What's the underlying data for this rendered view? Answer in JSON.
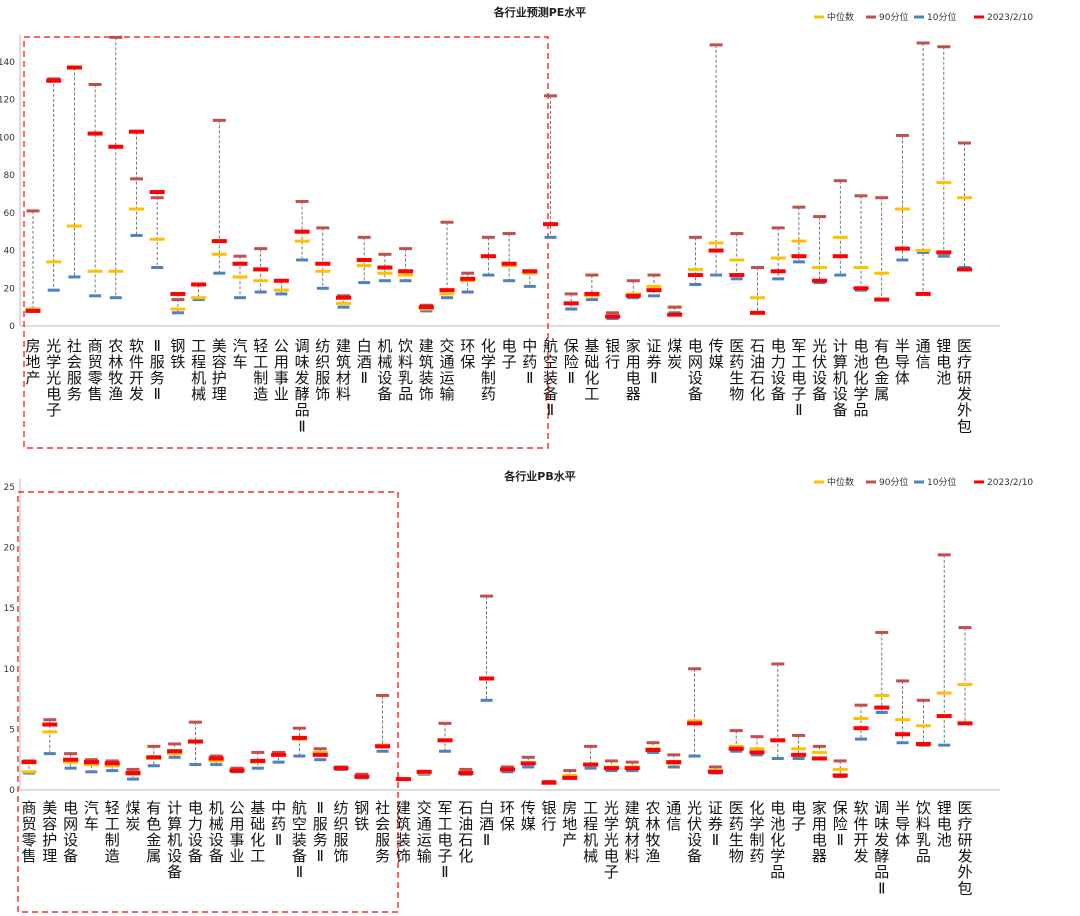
{
  "legend": [
    {
      "name": "中位数",
      "color": "#FFC000"
    },
    {
      "name": "90分位",
      "color": "#C0504D"
    },
    {
      "name": "10分位",
      "color": "#4F81BD"
    },
    {
      "name": "2023/2/10",
      "color": "#FF0000"
    }
  ],
  "colors": {
    "median": "#FFC000",
    "p90": "#C0504D",
    "p10": "#4F81BD",
    "current": "#FF0000",
    "highlight_box": "#FF0000",
    "whisker": "#555555"
  },
  "chart_data": [
    {
      "type": "range-marker",
      "title": "各行业预测PE水平",
      "ylim": [
        0,
        150
      ],
      "yticks": [
        0,
        20,
        40,
        60,
        80,
        100,
        120,
        140
      ],
      "categories": [
        "房地产",
        "光学光电子",
        "社会服务",
        "商贸零售",
        "农林牧渔",
        "软件开发",
        "Ⅱ服务Ⅱ",
        "钢铁",
        "工程机械",
        "美容护理",
        "汽车",
        "轻工制造",
        "公用事业",
        "调味发酵品Ⅱ",
        "纺织服饰",
        "建筑材料",
        "白酒Ⅱ",
        "机械设备",
        "饮料乳品",
        "建筑装饰",
        "交通运输",
        "环保",
        "化学制药",
        "电子",
        "中药Ⅱ",
        "航空装备Ⅱ",
        "保险Ⅱ",
        "基础化工",
        "银行",
        "家用电器",
        "证券Ⅱ",
        "煤炭",
        "电网设备",
        "传媒",
        "医药生物",
        "石油石化",
        "电力设备",
        "军工电子Ⅱ",
        "光伏设备",
        "计算机设备",
        "电池化学品",
        "有色金属",
        "半导体",
        "通信",
        "锂电池",
        "医疗研发外包"
      ],
      "series": [
        {
          "name": "中位数",
          "values": [
            9,
            34,
            53,
            29,
            29,
            62,
            46,
            9,
            15,
            38,
            26,
            24,
            19,
            45,
            29,
            12,
            32,
            28,
            27,
            9,
            17,
            24,
            37,
            32,
            28,
            54,
            12,
            16,
            5,
            17,
            21,
            10,
            30,
            44,
            35,
            15,
            36,
            45,
            31,
            47,
            31,
            28,
            62,
            40,
            76,
            68
          ]
        },
        {
          "name": "90分位",
          "values": [
            61,
            131,
            137,
            128,
            153,
            78,
            68,
            14,
            22,
            109,
            37,
            41,
            24,
            66,
            52,
            16,
            47,
            38,
            41,
            11,
            55,
            28,
            47,
            49,
            29,
            122,
            17,
            27,
            7,
            24,
            27,
            10,
            47,
            149,
            49,
            31,
            52,
            63,
            58,
            77,
            69,
            68,
            101,
            150,
            148,
            97
          ]
        },
        {
          "name": "10分位",
          "values": [
            8,
            19,
            26,
            16,
            15,
            48,
            31,
            7,
            14,
            28,
            15,
            18,
            17,
            35,
            20,
            10,
            23,
            24,
            24,
            8,
            15,
            18,
            27,
            24,
            21,
            47,
            9,
            14,
            4,
            15,
            16,
            7,
            22,
            27,
            25,
            7,
            25,
            34,
            23,
            27,
            19,
            14,
            35,
            39,
            37,
            31
          ]
        },
        {
          "name": "2023/2/10",
          "values": [
            8,
            130,
            137,
            102,
            95,
            103,
            71,
            17,
            22,
            45,
            33,
            30,
            24,
            50,
            33,
            15,
            35,
            31,
            29,
            10,
            19,
            25,
            37,
            33,
            29,
            54,
            12,
            17,
            5,
            16,
            19,
            6,
            27,
            40,
            27,
            7,
            29,
            37,
            24,
            37,
            20,
            14,
            41,
            17,
            39,
            30
          ]
        }
      ]
    },
    {
      "type": "range-marker",
      "title": "各行业PB水平",
      "ylim": [
        0,
        25
      ],
      "yticks": [
        0,
        5,
        10,
        15,
        20,
        25
      ],
      "categories": [
        "商贸零售",
        "美容护理",
        "电网设备",
        "汽车",
        "轻工制造",
        "煤炭",
        "有色金属",
        "计算机设备",
        "电力设备",
        "机械设备",
        "公用事业",
        "基础化工",
        "中药Ⅱ",
        "航空装备Ⅱ",
        "Ⅱ服务Ⅱ",
        "纺织服饰",
        "钢铁",
        "社会服务",
        "建筑装饰",
        "交通运输",
        "军工电子Ⅱ",
        "石油石化",
        "白酒Ⅱ",
        "环保",
        "传媒",
        "银行",
        "房地产",
        "工程机械",
        "光学光电子",
        "建筑材料",
        "农林牧渔",
        "通信",
        "光伏设备",
        "证券Ⅱ",
        "医药生物",
        "化学制药",
        "电池化学品",
        "电子",
        "家用电器",
        "保险Ⅱ",
        "软件开发",
        "调味发酵品Ⅱ",
        "半导体",
        "饮料乳品",
        "锂电池",
        "医疗研发外包"
      ],
      "series": [
        {
          "name": "中位数",
          "values": [
            1.5,
            4.8,
            2.3,
            2.1,
            2.0,
            1.3,
            2.6,
            3.0,
            4.0,
            2.4,
            1.7,
            2.3,
            2.9,
            4.2,
            3.1,
            1.8,
            1.1,
            3.7,
            0.9,
            1.4,
            4.1,
            1.4,
            9.2,
            1.7,
            2.2,
            0.6,
            1.2,
            2.1,
            1.9,
            1.9,
            3.4,
            2.2,
            5.7,
            1.6,
            3.6,
            3.4,
            4.1,
            3.4,
            3.1,
            1.7,
            5.9,
            7.8,
            5.8,
            5.3,
            8.0,
            8.7
          ]
        },
        {
          "name": "90分位",
          "values": [
            2.4,
            5.8,
            3.0,
            2.5,
            2.4,
            1.7,
            3.6,
            3.8,
            5.6,
            2.8,
            1.8,
            3.1,
            3.1,
            5.1,
            3.4,
            1.9,
            1.3,
            7.8,
            0.9,
            1.5,
            5.5,
            1.7,
            16.0,
            1.9,
            2.7,
            0.7,
            1.6,
            3.6,
            2.4,
            2.3,
            3.9,
            2.9,
            10.0,
            1.9,
            4.9,
            4.4,
            10.4,
            4.5,
            3.6,
            2.4,
            7.0,
            13.0,
            9.0,
            7.4,
            19.4,
            13.4
          ]
        },
        {
          "name": "10分位",
          "values": [
            1.4,
            3.0,
            1.8,
            1.5,
            1.6,
            0.9,
            2.0,
            2.7,
            2.1,
            2.1,
            1.5,
            1.8,
            2.3,
            2.8,
            2.5,
            1.7,
            1.0,
            3.2,
            0.9,
            1.3,
            3.2,
            1.3,
            7.4,
            1.5,
            1.9,
            0.6,
            1.0,
            1.8,
            1.6,
            1.6,
            3.1,
            1.9,
            2.8,
            1.4,
            3.2,
            2.9,
            2.6,
            2.6,
            2.6,
            1.1,
            4.2,
            6.4,
            3.9,
            3.7,
            3.7,
            5.5
          ]
        },
        {
          "name": "2023/2/10",
          "values": [
            2.3,
            5.4,
            2.5,
            2.3,
            2.2,
            1.4,
            2.7,
            3.2,
            4.0,
            2.6,
            1.6,
            2.4,
            2.9,
            4.3,
            2.9,
            1.8,
            1.1,
            3.6,
            0.9,
            1.5,
            4.1,
            1.4,
            9.2,
            1.7,
            2.2,
            0.6,
            1.0,
            2.1,
            1.8,
            1.8,
            3.3,
            2.3,
            5.5,
            1.5,
            3.4,
            3.1,
            4.1,
            2.9,
            2.6,
            1.2,
            5.1,
            6.8,
            4.6,
            3.8,
            6.1,
            5.5
          ]
        }
      ]
    }
  ]
}
